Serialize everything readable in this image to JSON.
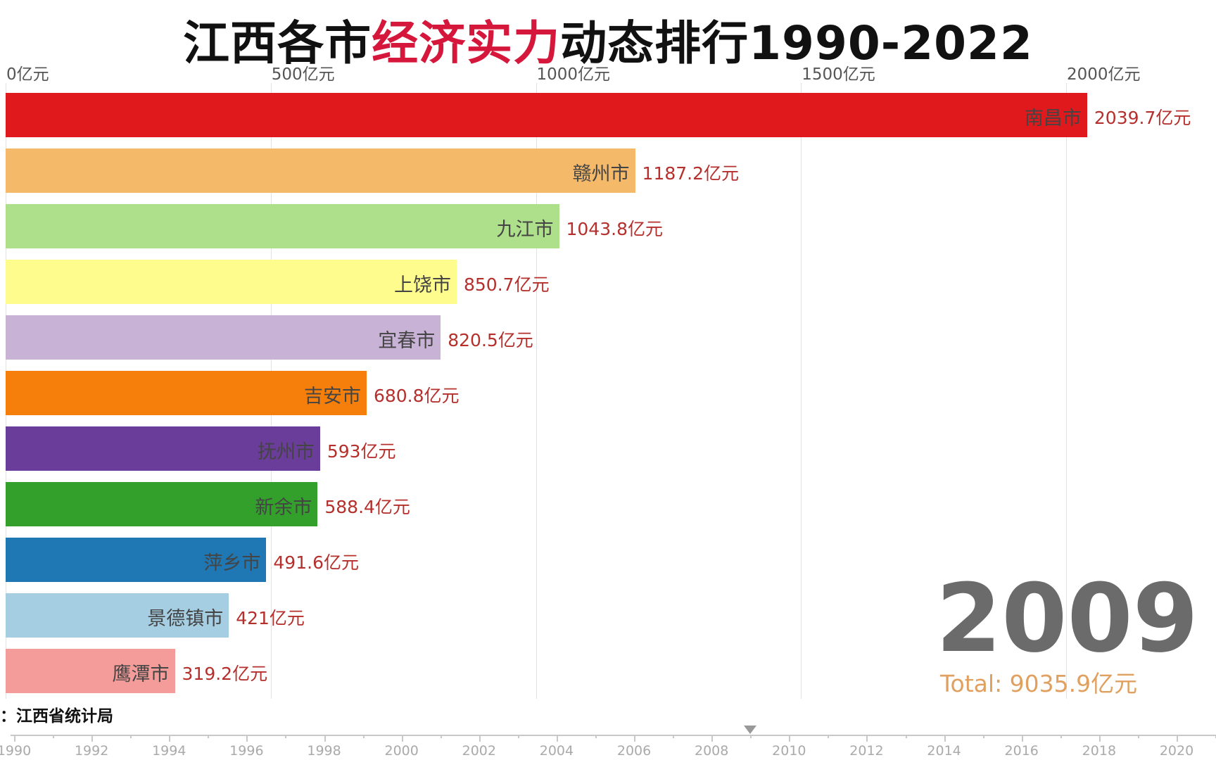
{
  "title": {
    "part1": "江西各市",
    "part2": "经济实力",
    "part3": "动态排行1990-2022",
    "highlight_color": "#d6173c"
  },
  "source": "：江西省统计局",
  "current_year": "2009",
  "total_label": "Total: 9035.9亿元",
  "chart_data": {
    "type": "bar",
    "orientation": "horizontal",
    "unit": "亿元",
    "x_ticks": [
      "0亿元",
      "500亿元",
      "1000亿元",
      "1500亿元",
      "2000亿元"
    ],
    "x_tick_values": [
      0,
      500,
      1000,
      1500,
      2000
    ],
    "grid": true,
    "categories": [
      "南昌市",
      "赣州市",
      "九江市",
      "上饶市",
      "宜春市",
      "吉安市",
      "抚州市",
      "新余市",
      "萍乡市",
      "景德镇市",
      "鹰潭市"
    ],
    "values": [
      2039.7,
      1187.2,
      1043.8,
      850.7,
      820.5,
      680.8,
      593,
      588.4,
      491.6,
      421,
      319.2
    ],
    "value_labels": [
      "2039.7亿元",
      "1187.2亿元",
      "1043.8亿元",
      "850.7亿元",
      "820.5亿元",
      "680.8亿元",
      "593亿元",
      "588.4亿元",
      "491.6亿元",
      "421亿元",
      "319.2亿元"
    ],
    "colors": [
      "#e0191c",
      "#f5b96a",
      "#aedf8a",
      "#fdfc8c",
      "#c8b2d6",
      "#f57f0a",
      "#6a3d9a",
      "#33a02c",
      "#1f78b4",
      "#a6cee3",
      "#f49c9a"
    ]
  },
  "timeline": {
    "labels": [
      "1990",
      "1992",
      "1994",
      "1996",
      "1998",
      "2000",
      "2002",
      "2004",
      "2006",
      "2008",
      "2010",
      "2012",
      "2014",
      "2016",
      "2018",
      "2020"
    ],
    "start": 1990,
    "end": 2022,
    "current": 2009
  }
}
